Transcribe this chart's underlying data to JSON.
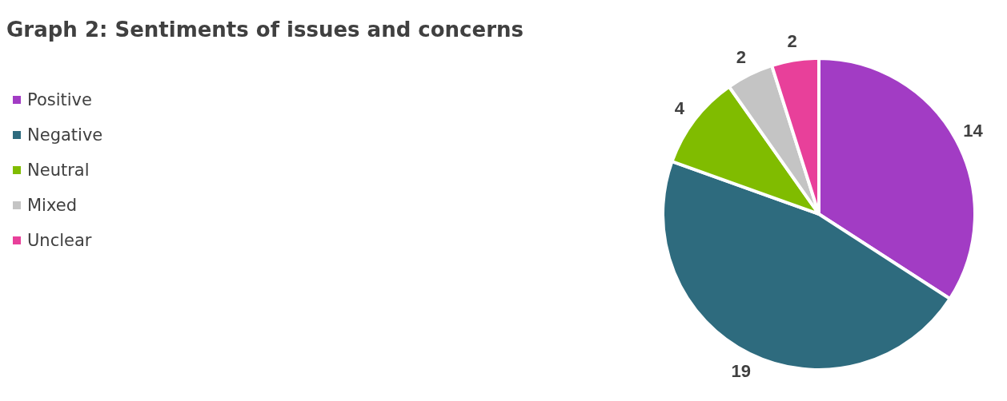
{
  "chart_data": {
    "type": "pie",
    "title": "Graph 2: Sentiments of issues and concerns",
    "categories": [
      "Positive",
      "Negative",
      "Neutral",
      "Mixed",
      "Unclear"
    ],
    "values": [
      14,
      19,
      4,
      2,
      2
    ],
    "colors": [
      "#a23cc4",
      "#2e6b7e",
      "#80bc00",
      "#c4c4c4",
      "#e8409a"
    ],
    "data_labels": true,
    "legend": "top left"
  }
}
